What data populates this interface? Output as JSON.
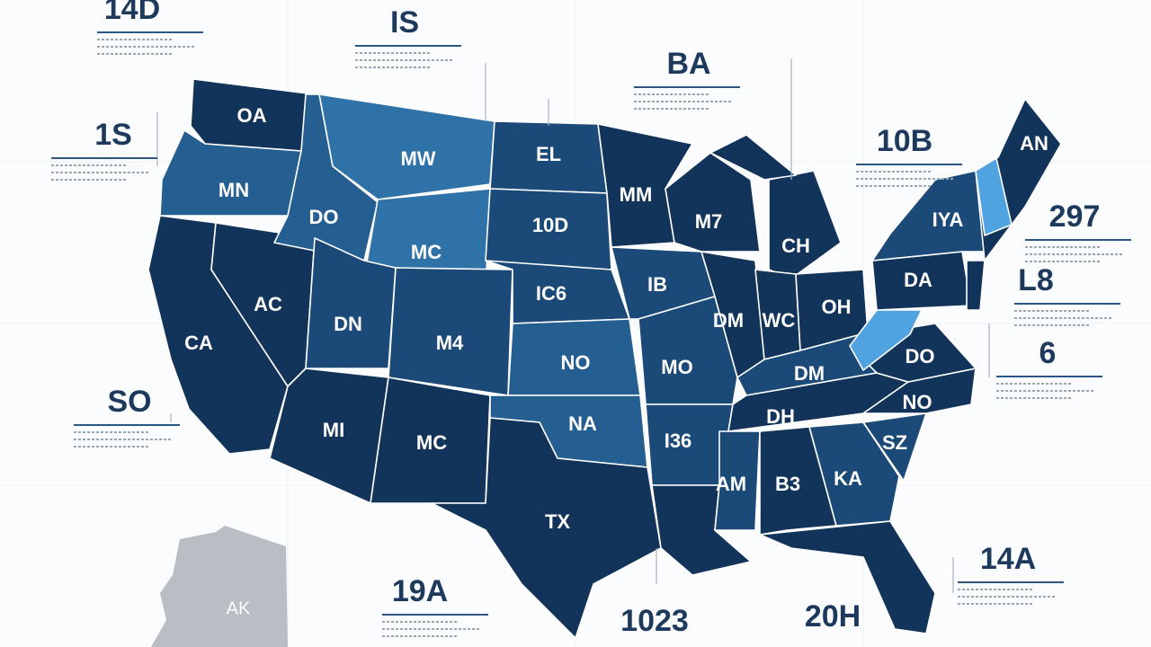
{
  "map": {
    "state_labels": [
      "OA",
      "MW",
      "MN",
      "DO",
      "MC",
      "EL",
      "10D",
      "MM",
      "M7",
      "CH",
      "IC6",
      "IB",
      "DM",
      "WC",
      "OH",
      "DA",
      "IYA",
      "AN",
      "CA",
      "AC",
      "DN",
      "M4",
      "NO",
      "MO",
      "DM",
      "DO",
      "DH",
      "NO",
      "NA",
      "I36",
      "MI",
      "MC",
      "SZ",
      "AM",
      "B3",
      "KA",
      "TX"
    ],
    "inset_label": "AK",
    "callouts": [
      "14D",
      "IS",
      "BA",
      "1S",
      "10B",
      "297",
      "L8",
      "6",
      "SO",
      "14A",
      "19A",
      "1023",
      "20H"
    ]
  }
}
